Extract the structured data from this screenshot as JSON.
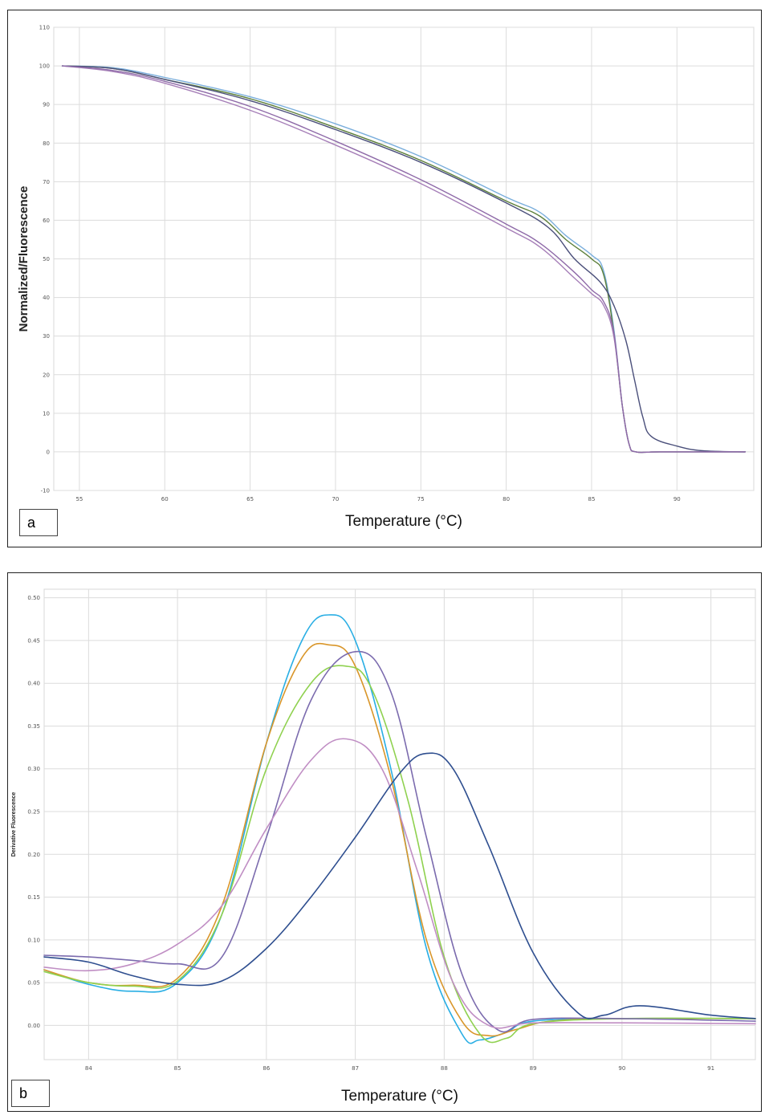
{
  "chart_data": [
    {
      "type": "line",
      "panel_label": "a",
      "xlabel": "Temperature (°C)",
      "ylabel": "Normalized/Fluorescence",
      "xlim": [
        53.5,
        94.5
      ],
      "ylim": [
        -10,
        110
      ],
      "xticks": [
        55,
        60,
        65,
        70,
        75,
        80,
        85,
        90
      ],
      "yticks": [
        -10,
        0,
        10,
        20,
        30,
        40,
        50,
        60,
        70,
        80,
        90,
        100,
        110
      ],
      "grid": true,
      "series": [
        {
          "color": "#7aaedc",
          "x": [
            54,
            57,
            60,
            65,
            70,
            75,
            80,
            82,
            83.5,
            85,
            85.7,
            86.3,
            86.8,
            87.2,
            87.6,
            89,
            94
          ],
          "y": [
            100,
            99.5,
            97,
            92,
            85,
            76.5,
            66,
            62,
            56,
            51,
            47,
            32,
            12,
            2,
            0,
            0,
            0
          ]
        },
        {
          "color": "#5c7f3a",
          "x": [
            54,
            57,
            60,
            65,
            70,
            75,
            80,
            82,
            83.5,
            85,
            85.7,
            86.3,
            86.8,
            87.2,
            87.6,
            89,
            94
          ],
          "y": [
            100,
            99.3,
            96.5,
            91.5,
            84,
            75.5,
            65,
            61,
            55,
            50,
            46,
            31,
            12,
            2,
            0,
            0,
            0
          ]
        },
        {
          "color": "#4a4f7a",
          "x": [
            54,
            57,
            60,
            65,
            70,
            75,
            80,
            82.5,
            84,
            85.5,
            86.3,
            87,
            87.5,
            88,
            88.5,
            90,
            91.5,
            94
          ],
          "y": [
            100,
            99.3,
            96.5,
            91,
            83.5,
            75,
            64.5,
            58,
            50,
            44,
            38,
            29,
            19,
            9,
            4,
            1.5,
            0.3,
            0
          ]
        },
        {
          "color": "#a67fb8",
          "x": [
            54,
            57,
            60,
            65,
            70,
            75,
            80,
            82,
            84,
            85,
            85.7,
            86.3,
            86.8,
            87.2,
            87.6,
            89,
            94
          ],
          "y": [
            100,
            98.5,
            95.5,
            88.5,
            79.5,
            69.5,
            58,
            53,
            45,
            41,
            38,
            30,
            12,
            2,
            0,
            0,
            0
          ]
        },
        {
          "color": "#8e6aa8",
          "x": [
            54,
            57,
            60,
            65,
            70,
            75,
            80,
            82,
            84,
            85,
            85.7,
            86.3,
            86.8,
            87.2,
            87.6,
            89,
            94
          ],
          "y": [
            100,
            98.8,
            96,
            89.5,
            80.5,
            70.5,
            59,
            54,
            46.5,
            42,
            39,
            31,
            12,
            2,
            0,
            0,
            0
          ]
        }
      ]
    },
    {
      "type": "line",
      "panel_label": "b",
      "xlabel": "Temperature (°C)",
      "ylabel": "Derivative Fluorescence",
      "xlim": [
        83.5,
        91.5
      ],
      "ylim": [
        -0.04,
        0.51
      ],
      "xticks": [
        84,
        85,
        86,
        87,
        88,
        89,
        90,
        91
      ],
      "yticks": [
        0.0,
        0.05,
        0.1,
        0.15,
        0.2,
        0.25,
        0.3,
        0.35,
        0.4,
        0.45,
        0.5
      ],
      "ytick_labels": [
        "0.00",
        "0.05",
        "0.10",
        "0.15",
        "0.20",
        "0.25",
        "0.30",
        "0.35",
        "0.40",
        "0.45",
        "0.50"
      ],
      "grid": true,
      "series": [
        {
          "color": "#29aee4",
          "x": [
            83.5,
            84,
            84.5,
            85,
            85.5,
            86,
            86.4,
            86.7,
            87,
            87.4,
            87.8,
            88.2,
            88.4,
            88.7,
            89,
            90,
            91.5
          ],
          "y": [
            0.065,
            0.048,
            0.04,
            0.05,
            0.13,
            0.33,
            0.45,
            0.48,
            0.45,
            0.3,
            0.09,
            -0.01,
            -0.017,
            -0.008,
            0.005,
            0.008,
            0.008
          ]
        },
        {
          "color": "#d9962a",
          "x": [
            83.5,
            84,
            84.5,
            85,
            85.5,
            86,
            86.4,
            86.7,
            87,
            87.4,
            87.8,
            88.2,
            88.5,
            88.8,
            89.2,
            90,
            91.5
          ],
          "y": [
            0.065,
            0.05,
            0.047,
            0.055,
            0.14,
            0.33,
            0.43,
            0.445,
            0.42,
            0.29,
            0.1,
            0.005,
            -0.012,
            -0.005,
            0.005,
            0.008,
            0.008
          ]
        },
        {
          "color": "#8fd14f",
          "x": [
            83.5,
            84,
            84.5,
            85,
            85.5,
            86,
            86.5,
            86.9,
            87.2,
            87.6,
            88,
            88.4,
            88.7,
            89,
            90,
            91.5
          ],
          "y": [
            0.063,
            0.05,
            0.046,
            0.052,
            0.13,
            0.3,
            0.4,
            0.42,
            0.39,
            0.26,
            0.08,
            -0.01,
            -0.015,
            0.002,
            0.008,
            0.008
          ]
        },
        {
          "color": "#7b6bae",
          "x": [
            83.5,
            84,
            84.5,
            85,
            85.5,
            86,
            86.5,
            87,
            87.4,
            87.8,
            88.2,
            88.6,
            89,
            90,
            91.5
          ],
          "y": [
            0.082,
            0.08,
            0.076,
            0.072,
            0.08,
            0.22,
            0.38,
            0.437,
            0.39,
            0.22,
            0.06,
            -0.005,
            0.007,
            0.008,
            0.005
          ]
        },
        {
          "color": "#c08ec4",
          "x": [
            83.5,
            84,
            84.5,
            85,
            85.5,
            86,
            86.5,
            86.9,
            87.3,
            87.7,
            88.1,
            88.5,
            89,
            90,
            91.5
          ],
          "y": [
            0.068,
            0.064,
            0.072,
            0.095,
            0.14,
            0.23,
            0.31,
            0.335,
            0.3,
            0.18,
            0.05,
            0.0,
            0.003,
            0.003,
            0.002
          ]
        },
        {
          "color": "#2e4e8f",
          "x": [
            83.5,
            84,
            84.5,
            85,
            85.5,
            86,
            86.5,
            87,
            87.5,
            87.8,
            88.1,
            88.5,
            89,
            89.5,
            89.8,
            90.2,
            91,
            91.5
          ],
          "y": [
            0.08,
            0.074,
            0.058,
            0.048,
            0.052,
            0.09,
            0.15,
            0.22,
            0.295,
            0.318,
            0.3,
            0.21,
            0.085,
            0.015,
            0.012,
            0.023,
            0.012,
            0.008
          ]
        }
      ]
    }
  ]
}
